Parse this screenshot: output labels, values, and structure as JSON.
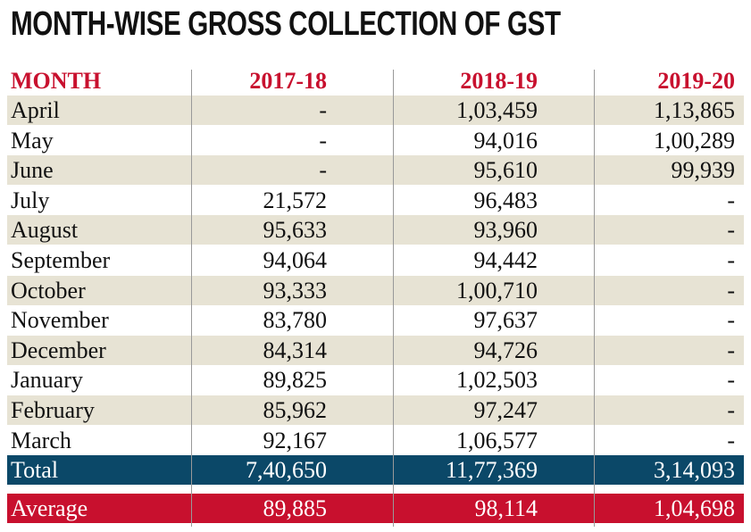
{
  "header": {
    "title": "MONTH-WISE GROSS COLLECTION OF GST"
  },
  "table": {
    "columns": [
      "MONTH",
      "2017-18",
      "2018-19",
      "2019-20"
    ],
    "rows": [
      [
        "April",
        "-",
        "1,03,459",
        "1,13,865"
      ],
      [
        "May",
        "-",
        "94,016",
        "1,00,289"
      ],
      [
        "June",
        "-",
        "95,610",
        "99,939"
      ],
      [
        "July",
        "21,572",
        "96,483",
        "-"
      ],
      [
        "August",
        "95,633",
        "93,960",
        "-"
      ],
      [
        "September",
        "94,064",
        "94,442",
        "-"
      ],
      [
        "October",
        "93,333",
        "1,00,710",
        "-"
      ],
      [
        "November",
        "83,780",
        "97,637",
        "-"
      ],
      [
        "December",
        "84,314",
        "94,726",
        "-"
      ],
      [
        "January",
        "89,825",
        "1,02,503",
        "-"
      ],
      [
        "February",
        "85,962",
        "97,247",
        "-"
      ],
      [
        "March",
        "92,167",
        "1,06,577",
        "-"
      ]
    ],
    "total": [
      "Total",
      "7,40,650",
      "11,77,369",
      "3,14,093"
    ],
    "average": [
      "Average",
      "89,885",
      "98,114",
      "1,04,698"
    ]
  }
}
